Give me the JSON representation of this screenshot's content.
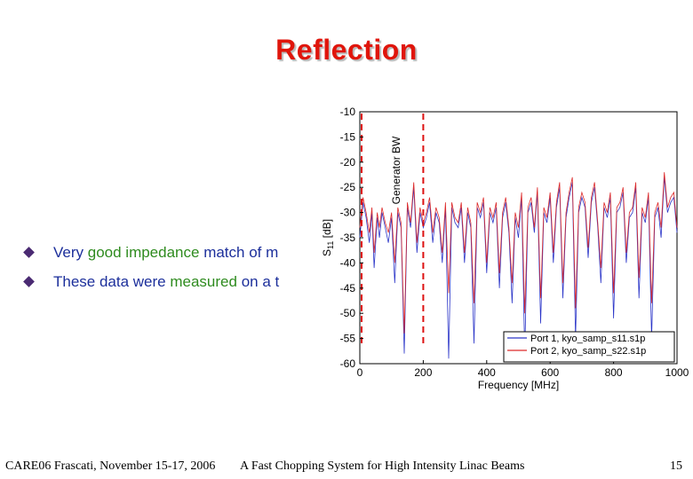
{
  "slide": {
    "title": "Reflection",
    "bullets": [
      {
        "parts": [
          {
            "text": "Very ",
            "color": "blue"
          },
          {
            "text": "good impedance",
            "color": "green"
          },
          {
            "text": " match of m",
            "color": "blue"
          }
        ]
      },
      {
        "parts": [
          {
            "text": "These data were ",
            "color": "blue"
          },
          {
            "text": "measured",
            "color": "green"
          },
          {
            "text": " on a t",
            "color": "blue"
          }
        ]
      }
    ],
    "footer": {
      "left": "CARE06 Frascati, November 15-17, 2006",
      "center": "A Fast Chopping System for High Intensity Linac Beams",
      "page": "15"
    }
  },
  "chart_data": {
    "type": "line",
    "xlabel": "Frequency [MHz]",
    "ylabel_main": "S",
    "ylabel_sub": "11",
    "ylabel_unit": " [dB]",
    "xlim": [
      0,
      1000
    ],
    "ylim": [
      -60,
      -10
    ],
    "xticks": [
      0,
      200,
      400,
      600,
      800,
      1000
    ],
    "yticks": [
      -10,
      -15,
      -20,
      -25,
      -30,
      -35,
      -40,
      -45,
      -50,
      -55,
      -60
    ],
    "grid": false,
    "legend_position": "bottom-right",
    "annotation": "Generator BW",
    "markers": [
      {
        "x": 0,
        "color": "#dd1111",
        "style": "dashed"
      },
      {
        "x": 200,
        "color": "#dd1111",
        "style": "dashed"
      }
    ],
    "series": [
      {
        "name": "Port 1, kyo_samp_s11.s1p",
        "color": "#2b35c8",
        "x": [
          0,
          10,
          20,
          30,
          38,
          45,
          55,
          62,
          70,
          80,
          90,
          100,
          110,
          120,
          130,
          140,
          150,
          160,
          170,
          180,
          190,
          200,
          210,
          220,
          230,
          240,
          250,
          260,
          270,
          280,
          290,
          300,
          310,
          320,
          330,
          340,
          350,
          360,
          370,
          380,
          390,
          400,
          410,
          420,
          430,
          440,
          450,
          460,
          470,
          480,
          490,
          500,
          510,
          520,
          530,
          540,
          550,
          560,
          570,
          580,
          590,
          600,
          610,
          620,
          630,
          640,
          650,
          660,
          670,
          680,
          690,
          700,
          710,
          720,
          730,
          740,
          750,
          760,
          770,
          780,
          790,
          800,
          810,
          820,
          830,
          840,
          850,
          860,
          870,
          880,
          890,
          900,
          910,
          920,
          930,
          940,
          950,
          960,
          970,
          980,
          990,
          1000
        ],
        "values": [
          -35,
          -28,
          -31,
          -36,
          -30,
          -41,
          -31,
          -35,
          -30,
          -33,
          -36,
          -31,
          -44,
          -30,
          -33,
          -58,
          -29,
          -33,
          -25,
          -38,
          -30,
          -33,
          -31,
          -28,
          -36,
          -30,
          -32,
          -40,
          -29,
          -59,
          -29,
          -32,
          -33,
          -29,
          -40,
          -30,
          -33,
          -56,
          -29,
          -31,
          -28,
          -42,
          -30,
          -32,
          -29,
          -45,
          -31,
          -28,
          -34,
          -48,
          -31,
          -35,
          -27,
          -58,
          -30,
          -28,
          -34,
          -26,
          -52,
          -30,
          -32,
          -27,
          -40,
          -29,
          -25,
          -47,
          -31,
          -27,
          -24,
          -55,
          -30,
          -27,
          -29,
          -39,
          -28,
          -25,
          -33,
          -44,
          -29,
          -31,
          -27,
          -51,
          -30,
          -29,
          -26,
          -40,
          -31,
          -30,
          -25,
          -47,
          -30,
          -32,
          -27,
          -55,
          -31,
          -29,
          -35,
          -23,
          -30,
          -28,
          -27,
          -34
        ]
      },
      {
        "name": "Port 2, kyo_samp_s22.s1p",
        "color": "#dd2a2a",
        "x": [
          0,
          10,
          20,
          30,
          38,
          45,
          55,
          62,
          70,
          80,
          90,
          100,
          110,
          120,
          130,
          140,
          150,
          160,
          170,
          180,
          190,
          200,
          210,
          220,
          230,
          240,
          250,
          260,
          270,
          280,
          290,
          300,
          310,
          320,
          330,
          340,
          350,
          360,
          370,
          380,
          390,
          400,
          410,
          420,
          430,
          440,
          450,
          460,
          470,
          480,
          490,
          500,
          510,
          520,
          530,
          540,
          550,
          560,
          570,
          580,
          590,
          600,
          610,
          620,
          630,
          640,
          650,
          660,
          670,
          680,
          690,
          700,
          710,
          720,
          730,
          740,
          750,
          760,
          770,
          780,
          790,
          800,
          810,
          820,
          830,
          840,
          850,
          860,
          870,
          880,
          890,
          900,
          910,
          920,
          930,
          940,
          950,
          960,
          970,
          980,
          990,
          1000
        ],
        "values": [
          -33,
          -27,
          -30,
          -34,
          -29,
          -38,
          -30,
          -33,
          -29,
          -32,
          -34,
          -30,
          -40,
          -29,
          -32,
          -54,
          -28,
          -32,
          -24,
          -36,
          -29,
          -32,
          -30,
          -27,
          -34,
          -29,
          -31,
          -38,
          -28,
          -46,
          -28,
          -31,
          -32,
          -28,
          -38,
          -29,
          -32,
          -48,
          -28,
          -30,
          -27,
          -40,
          -29,
          -31,
          -28,
          -42,
          -30,
          -27,
          -33,
          -44,
          -30,
          -33,
          -26,
          -50,
          -29,
          -27,
          -33,
          -25,
          -47,
          -29,
          -31,
          -26,
          -38,
          -28,
          -24,
          -44,
          -30,
          -26,
          -23,
          -49,
          -29,
          -26,
          -28,
          -37,
          -27,
          -24,
          -32,
          -41,
          -28,
          -30,
          -26,
          -46,
          -29,
          -28,
          -25,
          -38,
          -30,
          -29,
          -24,
          -43,
          -29,
          -31,
          -26,
          -48,
          -30,
          -28,
          -33,
          -22,
          -29,
          -27,
          -26,
          -33
        ]
      }
    ]
  }
}
